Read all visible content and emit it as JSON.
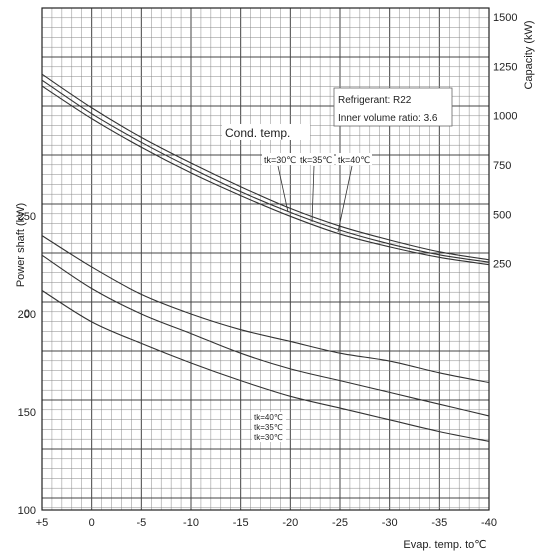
{
  "chart_data": {
    "type": "line",
    "x_axis": {
      "label": "Evap. temp. to℃",
      "ticks": [
        5,
        0,
        -5,
        -10,
        -15,
        -20,
        -25,
        -30,
        -35,
        -40
      ],
      "tick_labels": [
        "+5",
        "0",
        "-5",
        "-10",
        "-15",
        "-20",
        "-25",
        "-30",
        "-35",
        "-40"
      ],
      "range": [
        5,
        -40
      ]
    },
    "capacity_axis": {
      "label": "Capacity (kW)",
      "side": "right",
      "ticks": [
        250,
        500,
        750,
        1000,
        1250,
        1500
      ],
      "tick_labels": [
        "250",
        "500",
        "750",
        "1000",
        "1250",
        "1500"
      ]
    },
    "power_axis": {
      "label": "Power shaft (kW)",
      "side": "left",
      "ticks": [
        100,
        150,
        200,
        250
      ],
      "tick_labels": [
        "100",
        "150",
        "200",
        "250"
      ],
      "zero_label": "0"
    },
    "annotations": {
      "refrigerant": "Refrigerant: R22",
      "volume_ratio": "Inner volume ratio: 3.6",
      "cond_temp": "Cond. temp."
    },
    "capacity_series": [
      {
        "name": "tk=30℃",
        "x": [
          5,
          0,
          -5,
          -10,
          -15,
          -20,
          -25,
          -30,
          -35,
          -40
        ],
        "values": [
          1210,
          1040,
          890,
          760,
          640,
          530,
          440,
          370,
          310,
          270
        ]
      },
      {
        "name": "tk=35℃",
        "x": [
          5,
          0,
          -5,
          -10,
          -15,
          -20,
          -25,
          -30,
          -35,
          -40
        ],
        "values": [
          1180,
          1010,
          865,
          735,
          615,
          510,
          420,
          350,
          295,
          258
        ]
      },
      {
        "name": "tk=40℃",
        "x": [
          5,
          0,
          -5,
          -10,
          -15,
          -20,
          -25,
          -30,
          -35,
          -40
        ],
        "values": [
          1150,
          985,
          840,
          710,
          595,
          490,
          400,
          335,
          282,
          245
        ]
      }
    ],
    "power_series": [
      {
        "name": "tk=40℃",
        "x": [
          5,
          0,
          -5,
          -10,
          -15,
          -20,
          -25,
          -30,
          -35,
          -40
        ],
        "values": [
          240,
          224,
          210,
          200,
          192,
          186,
          180,
          176,
          170,
          165
        ]
      },
      {
        "name": "tk=35℃",
        "x": [
          5,
          0,
          -5,
          -10,
          -15,
          -20,
          -25,
          -30,
          -35,
          -40
        ],
        "values": [
          230,
          213,
          200,
          190,
          180,
          172,
          166,
          160,
          154,
          148
        ]
      },
      {
        "name": "tk=30℃",
        "x": [
          5,
          0,
          -5,
          -10,
          -15,
          -20,
          -25,
          -30,
          -35,
          -40
        ],
        "values": [
          212,
          196,
          185,
          175,
          166,
          158,
          152,
          146,
          140,
          135
        ]
      }
    ],
    "grid": true
  }
}
